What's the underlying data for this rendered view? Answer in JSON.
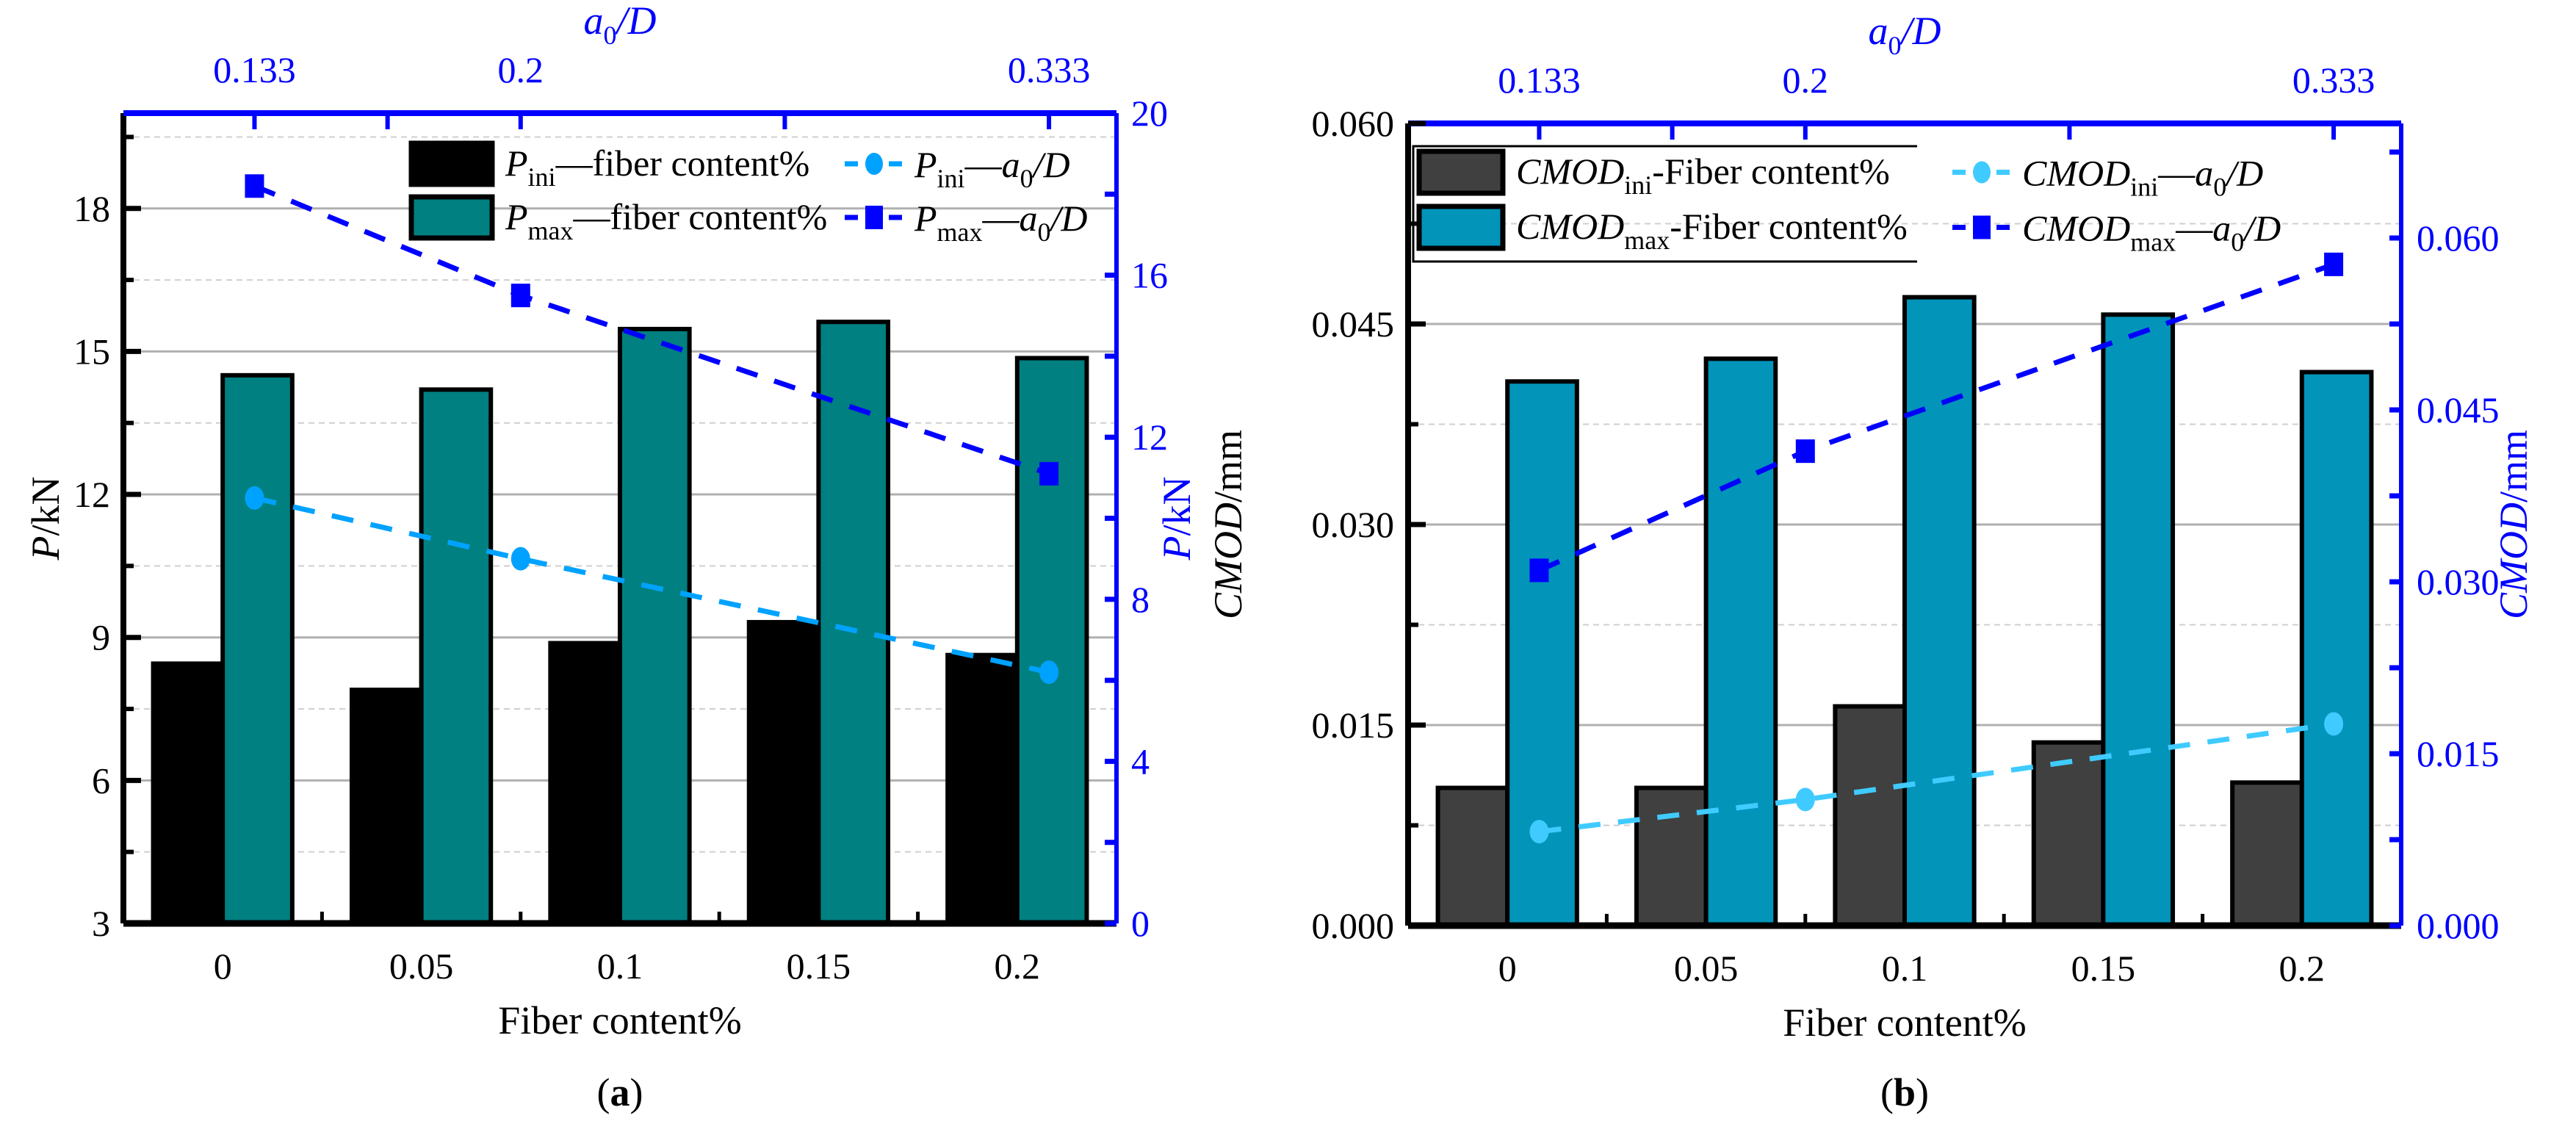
{
  "colors": {
    "black_bar": "#000000",
    "teal_bar": "#008080",
    "dark_gray_bar": "#404040",
    "cyan_bar": "#0294B9",
    "blue": "#0000FF",
    "light_blue_a": "#00A2FF",
    "light_blue_b": "#3FCBFF",
    "axis_black": "#000000",
    "grid": "#b0b0b0"
  },
  "chart_data": [
    {
      "id": "a",
      "type": "bar",
      "caption": "a",
      "categories": [
        "0",
        "0.05",
        "0.1",
        "0.15",
        "0.2"
      ],
      "xlabel": "Fiber content%",
      "ylabel": {
        "italic": "P",
        "rest": "/kN"
      },
      "ylabel_right": {
        "italic": "P",
        "rest": "/kN"
      },
      "top_axis_label": {
        "main": "a",
        "sub": "0",
        "rest": "/D"
      },
      "ylim": [
        3,
        20
      ],
      "yticks": [
        3,
        6,
        9,
        12,
        15,
        18
      ],
      "ytick_labels": [
        "3",
        "6",
        "9",
        "12",
        "15",
        "18"
      ],
      "ylim_right": [
        0,
        20
      ],
      "yticks_right": [
        0,
        4,
        8,
        12,
        16,
        20
      ],
      "ytick_labels_right": [
        "0",
        "4",
        "8",
        "12",
        "16",
        "20"
      ],
      "xlim_top": [
        0.1,
        0.35
      ],
      "xticks_top": [
        0.133,
        0.2,
        0.333
      ],
      "xtick_labels_top": [
        "0.133",
        "0.2",
        "0.333"
      ],
      "grid": true,
      "legend_placement": "top",
      "bar_series": [
        {
          "name": {
            "main": "P",
            "sub": "ini",
            "rest": "—fiber content%"
          },
          "values": [
            8.45,
            7.9,
            8.88,
            9.32,
            8.63
          ],
          "color": "#000000"
        },
        {
          "name": {
            "main": "P",
            "sub": "max",
            "rest": "—fiber content%"
          },
          "values": [
            14.5,
            14.2,
            15.47,
            15.62,
            14.86
          ],
          "color": "#008080"
        }
      ],
      "line_series": [
        {
          "name": {
            "main": "P",
            "sub": "ini",
            "rest": "—",
            "a": "a",
            "a_sub": "0",
            "tail": "/D"
          },
          "x": [
            0.133,
            0.2,
            0.333
          ],
          "values": [
            10.5,
            9.0,
            6.2
          ],
          "marker": "circle",
          "color": "#00A2FF",
          "axis": "right"
        },
        {
          "name": {
            "main": "P",
            "sub": "max",
            "rest": "—",
            "a": "a",
            "a_sub": "0",
            "tail": "/D"
          },
          "x": [
            0.133,
            0.2,
            0.333
          ],
          "values": [
            18.2,
            15.5,
            11.1
          ],
          "marker": "square",
          "color": "#0000FF",
          "axis": "right"
        }
      ]
    },
    {
      "id": "b",
      "type": "bar",
      "caption": "b",
      "categories": [
        "0",
        "0.05",
        "0.1",
        "0.15",
        "0.2"
      ],
      "xlabel": "Fiber content%",
      "ylabel": {
        "italic": "CMOD",
        "rest": "/mm"
      },
      "ylabel_right": {
        "italic": "CMOD",
        "rest": "/mm"
      },
      "top_axis_label": {
        "main": "a",
        "sub": "0",
        "rest": "/D"
      },
      "ylim": [
        0,
        0.06
      ],
      "yticks": [
        0,
        0.015,
        0.03,
        0.045,
        0.06
      ],
      "ytick_labels": [
        "0.000",
        "0.015",
        "0.030",
        "0.045",
        "0.060"
      ],
      "ylim_right": [
        0,
        0.07
      ],
      "yticks_right": [
        0,
        0.015,
        0.03,
        0.045,
        0.06
      ],
      "ytick_labels_right": [
        "0.000",
        "0.015",
        "0.030",
        "0.045",
        "0.060"
      ],
      "xlim_top": [
        0.1,
        0.35
      ],
      "xticks_top": [
        0.133,
        0.2,
        0.333
      ],
      "xtick_labels_top": [
        "0.133",
        "0.2",
        "0.333"
      ],
      "grid": true,
      "legend_placement": "top-left",
      "bar_series": [
        {
          "name": {
            "main": "CMOD",
            "sub": "ini",
            "rest": "-Fiber content%"
          },
          "values": [
            0.0103,
            0.0103,
            0.0164,
            0.0137,
            0.0107
          ],
          "color": "#404040"
        },
        {
          "name": {
            "main": "CMOD",
            "sub": "max",
            "rest": "-Fiber content%"
          },
          "values": [
            0.0407,
            0.0424,
            0.047,
            0.0457,
            0.0414
          ],
          "color": "#0294B9"
        }
      ],
      "line_series": [
        {
          "name": {
            "main": "CMOD",
            "sub": "ini",
            "rest": "—",
            "a": "a",
            "a_sub": "0",
            "tail": "/D"
          },
          "x": [
            0.133,
            0.2,
            0.333
          ],
          "values": [
            0.0082,
            0.011,
            0.0176
          ],
          "marker": "circle",
          "color": "#3FCBFF",
          "axis": "right"
        },
        {
          "name": {
            "main": "CMOD",
            "sub": "max",
            "rest": "—",
            "a": "a",
            "a_sub": "0",
            "tail": "/D"
          },
          "x": [
            0.133,
            0.2,
            0.333
          ],
          "values": [
            0.031,
            0.0414,
            0.0577
          ],
          "marker": "square",
          "color": "#0000FF",
          "axis": "right"
        }
      ]
    }
  ]
}
